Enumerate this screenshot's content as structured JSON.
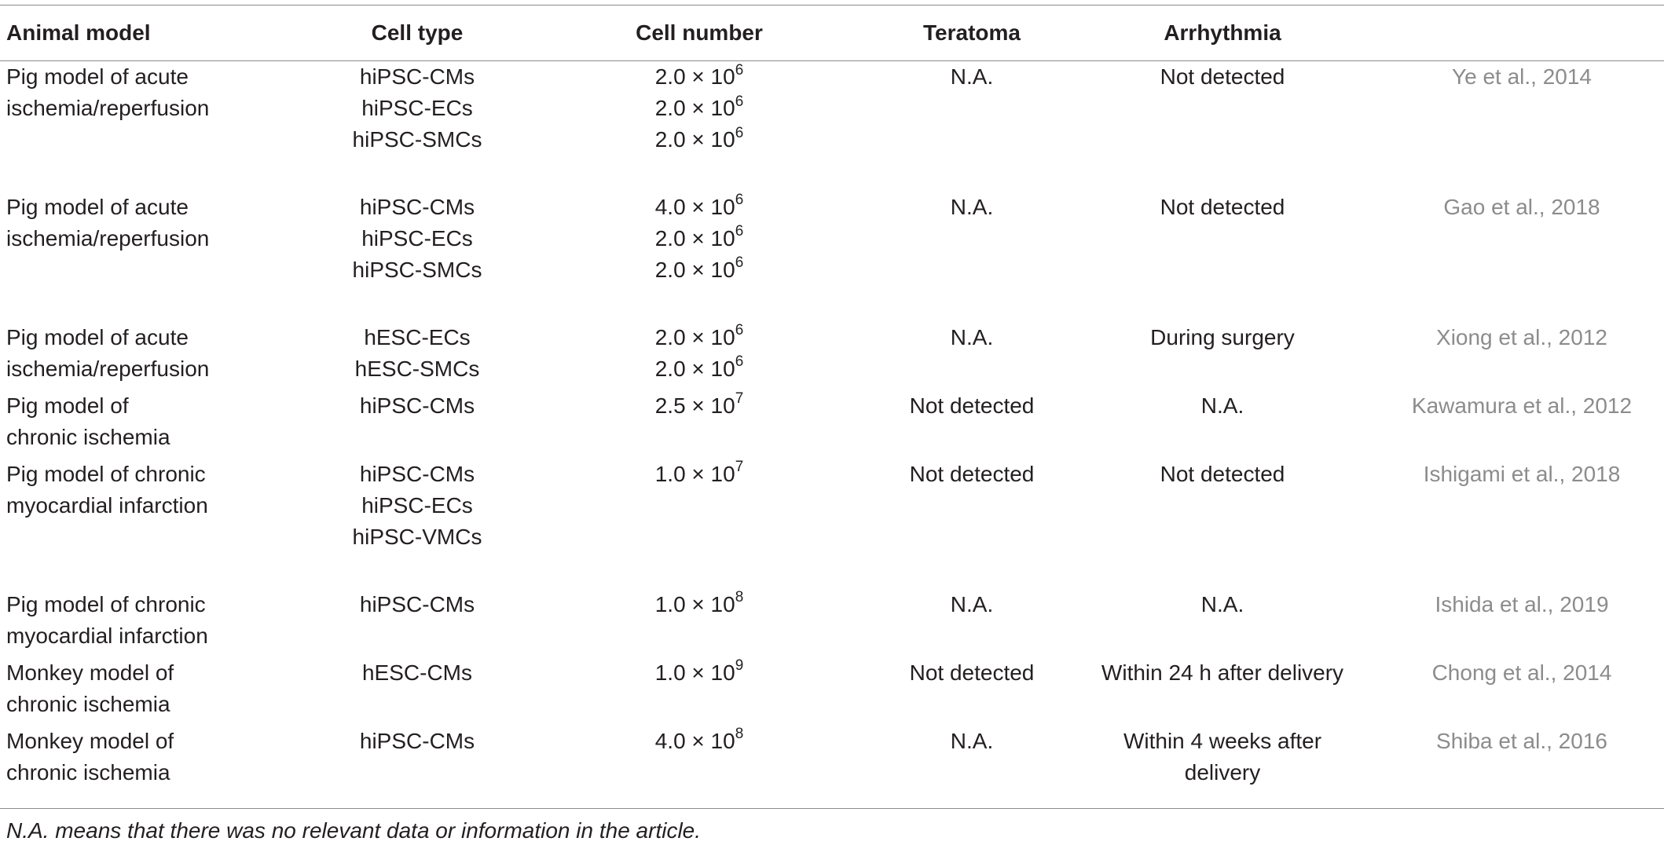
{
  "columns": [
    "Animal model",
    "Cell type",
    "Cell number",
    "Teratoma",
    "Arrhythmia",
    ""
  ],
  "rows": [
    {
      "animal_model": [
        "Pig model of acute",
        "ischemia/reperfusion"
      ],
      "cell_type": [
        "hiPSC-CMs",
        "hiPSC-ECs",
        "hiPSC-SMCs"
      ],
      "cell_number": [
        {
          "mantissa": "2.0 × 10",
          "exponent": "6"
        },
        {
          "mantissa": "2.0 × 10",
          "exponent": "6"
        },
        {
          "mantissa": "2.0 × 10",
          "exponent": "6"
        }
      ],
      "teratoma": [
        "N.A."
      ],
      "arrhythmia": [
        "Not detected"
      ],
      "reference": "Ye et al., 2014"
    },
    {
      "animal_model": [
        "Pig model of acute",
        "ischemia/reperfusion"
      ],
      "cell_type": [
        "hiPSC-CMs",
        "hiPSC-ECs",
        "hiPSC-SMCs"
      ],
      "cell_number": [
        {
          "mantissa": "4.0 × 10",
          "exponent": "6"
        },
        {
          "mantissa": "2.0 × 10",
          "exponent": "6"
        },
        {
          "mantissa": "2.0 × 10",
          "exponent": "6"
        }
      ],
      "teratoma": [
        "N.A."
      ],
      "arrhythmia": [
        "Not detected"
      ],
      "reference": "Gao et al., 2018"
    },
    {
      "animal_model": [
        "Pig model of acute",
        "ischemia/reperfusion"
      ],
      "cell_type": [
        "hESC-ECs",
        "hESC-SMCs"
      ],
      "cell_number": [
        {
          "mantissa": "2.0 × 10",
          "exponent": "6"
        },
        {
          "mantissa": "2.0 × 10",
          "exponent": "6"
        }
      ],
      "teratoma": [
        "N.A."
      ],
      "arrhythmia": [
        "During surgery"
      ],
      "reference": "Xiong et al., 2012"
    },
    {
      "animal_model": [
        "Pig model of",
        "chronic ischemia"
      ],
      "cell_type": [
        "hiPSC-CMs"
      ],
      "cell_number": [
        {
          "mantissa": "2.5 × 10",
          "exponent": "7"
        }
      ],
      "teratoma": [
        "Not detected"
      ],
      "arrhythmia": [
        "N.A."
      ],
      "reference": "Kawamura et al., 2012"
    },
    {
      "animal_model": [
        "Pig model of chronic",
        "myocardial infarction"
      ],
      "cell_type": [
        "hiPSC-CMs",
        "hiPSC-ECs",
        "hiPSC-VMCs"
      ],
      "cell_number": [
        {
          "mantissa": "1.0 × 10",
          "exponent": "7"
        }
      ],
      "teratoma": [
        "Not detected"
      ],
      "arrhythmia": [
        "Not detected"
      ],
      "reference": "Ishigami et al., 2018"
    },
    {
      "animal_model": [
        "Pig model of chronic",
        "myocardial infarction"
      ],
      "cell_type": [
        "hiPSC-CMs"
      ],
      "cell_number": [
        {
          "mantissa": "1.0 × 10",
          "exponent": "8"
        }
      ],
      "teratoma": [
        "N.A."
      ],
      "arrhythmia": [
        "N.A."
      ],
      "reference": "Ishida et al., 2019"
    },
    {
      "animal_model": [
        "Monkey model of",
        "chronic ischemia"
      ],
      "cell_type": [
        "hESC-CMs"
      ],
      "cell_number": [
        {
          "mantissa": "1.0 × 10",
          "exponent": "9"
        }
      ],
      "teratoma": [
        "Not detected"
      ],
      "arrhythmia": [
        "Within 24 h after delivery"
      ],
      "reference": "Chong et al., 2014"
    },
    {
      "animal_model": [
        "Monkey model of",
        "chronic ischemia"
      ],
      "cell_type": [
        "hiPSC-CMs"
      ],
      "cell_number": [
        {
          "mantissa": "4.0 × 10",
          "exponent": "8"
        }
      ],
      "teratoma": [
        "N.A."
      ],
      "arrhythmia": [
        "Within 4 weeks after",
        "delivery"
      ],
      "reference": "Shiba et al., 2016"
    }
  ],
  "footnote": "N.A. means that there was no relevant data or information in the article."
}
